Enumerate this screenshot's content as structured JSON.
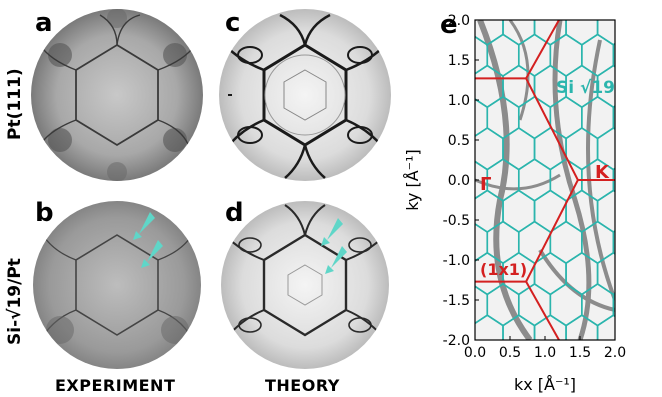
{
  "panels": {
    "a": "a",
    "b": "b",
    "c": "c",
    "d": "d",
    "e": "e"
  },
  "row_labels": {
    "top": "Pt(111)",
    "bottom": "Si-√19/Pt"
  },
  "column_labels": {
    "experiment": "EXPERIMENT",
    "theory": "THEORY"
  },
  "colors": {
    "accent_teal": "#2bb5ad",
    "arrow_teal": "#5fd6c8",
    "boundary_red": "#d42020"
  },
  "annotations": {
    "gamma": "Γ",
    "k_point": "K",
    "sqrt19": "Si √19",
    "cell_1x1": "(1x1)"
  },
  "chart_data": {
    "type": "scatter",
    "xlabel": "kx  [Å⁻¹]",
    "ylabel": "ky  [Å⁻¹]",
    "xlim": [
      0.0,
      2.0
    ],
    "ylim": [
      -2.0,
      2.0
    ],
    "xticks": [
      "0.0",
      "0.5",
      "1.0",
      "1.5",
      "2.0"
    ],
    "yticks": [
      "2.0",
      "1.5",
      "1.0",
      "0.5",
      "0.0",
      "-0.5",
      "-1.0",
      "-1.5",
      "-2.0"
    ],
    "zone_boundary": [
      [
        0.0,
        1.27
      ],
      [
        0.73,
        1.27
      ],
      [
        1.47,
        0.0
      ],
      [
        0.73,
        -1.27
      ],
      [
        0.0,
        -1.27
      ]
    ],
    "k_to_edge": [
      [
        1.47,
        0.0
      ],
      [
        2.0,
        0.0
      ]
    ],
    "extra_lines": [
      [
        [
          0.73,
          1.27
        ],
        [
          1.2,
          2.0
        ]
      ],
      [
        [
          0.73,
          -1.27
        ],
        [
          1.2,
          -2.0
        ]
      ]
    ],
    "sqrt19_hex_radius": 0.26
  }
}
